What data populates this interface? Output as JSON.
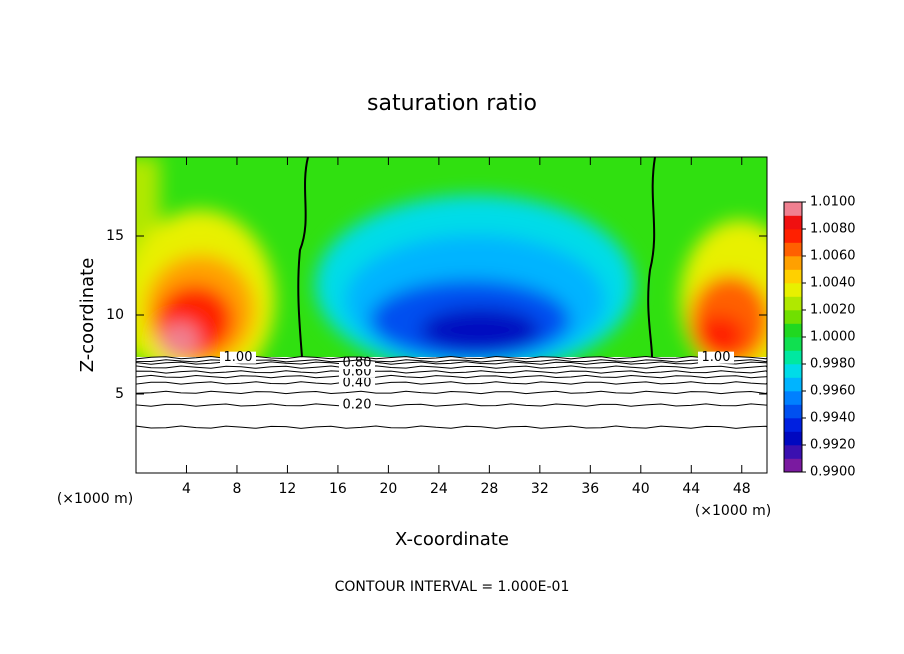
{
  "chart_data": {
    "type": "contour",
    "title": "saturation ratio",
    "xlabel": "X-coordinate",
    "ylabel": "Z-coordinate",
    "axis_unit": "(×1000 m)",
    "footnote": "CONTOUR INTERVAL = 1.000E-01",
    "xlim": [
      0,
      50
    ],
    "ylim": [
      0,
      20
    ],
    "xticks": [
      4,
      8,
      12,
      16,
      20,
      24,
      28,
      32,
      36,
      40,
      44,
      48
    ],
    "yticks": [
      5,
      10,
      15
    ],
    "contours": [
      {
        "level": 0.1,
        "z": 2.9
      },
      {
        "level": 0.2,
        "z": 4.3,
        "label": "0.20"
      },
      {
        "level": 0.3,
        "z": 5.1
      },
      {
        "level": 0.4,
        "z": 5.7,
        "label": "0.40"
      },
      {
        "level": 0.5,
        "z": 6.1
      },
      {
        "level": 0.6,
        "z": 6.4,
        "label": "0.60"
      },
      {
        "level": 0.7,
        "z": 6.7
      },
      {
        "level": 0.8,
        "z": 6.96,
        "label": "0.80"
      },
      {
        "level": 0.9,
        "z": 7.1
      },
      {
        "level": 1.0,
        "z": 7.3,
        "label": "1.00"
      }
    ],
    "colorbar": {
      "lim": [
        0.99,
        1.01
      ],
      "ticks": [
        {
          "value": 0.99,
          "label": "0.9900"
        },
        {
          "value": 0.992,
          "label": "0.9920"
        },
        {
          "value": 0.994,
          "label": "0.9940"
        },
        {
          "value": 0.996,
          "label": "0.9960"
        },
        {
          "value": 0.998,
          "label": "0.9980"
        },
        {
          "value": 1.0,
          "label": "1.0000"
        },
        {
          "value": 1.002,
          "label": "1.0020"
        },
        {
          "value": 1.004,
          "label": "1.0040"
        },
        {
          "value": 1.006,
          "label": "1.0060"
        },
        {
          "value": 1.008,
          "label": "1.0080"
        },
        {
          "value": 1.01,
          "label": "1.0100"
        }
      ],
      "colors": [
        "#7a1aa0",
        "#3a10b0",
        "#0008c0",
        "#0020e0",
        "#0050f0",
        "#0080ff",
        "#00b4ff",
        "#00dce8",
        "#00e8a0",
        "#10e050",
        "#20d820",
        "#70e000",
        "#b0e800",
        "#e8f000",
        "#ffd000",
        "#ffa000",
        "#ff6000",
        "#ff2000",
        "#f01010",
        "#f08090"
      ]
    }
  }
}
